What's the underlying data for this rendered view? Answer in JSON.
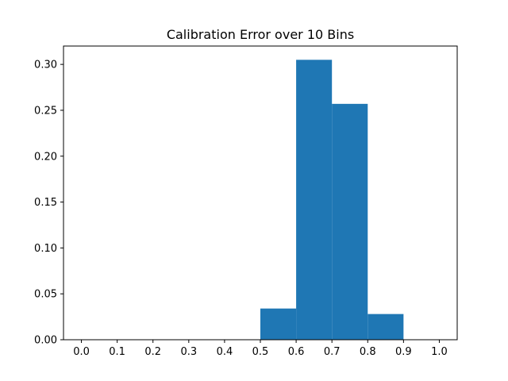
{
  "chart_data": {
    "type": "bar",
    "title": "Calibration Error over 10 Bins",
    "xlabel": "",
    "ylabel": "",
    "xlim": [
      -0.05,
      1.05
    ],
    "ylim": [
      0,
      0.32
    ],
    "bins": [
      {
        "x0": 0.0,
        "x1": 0.1,
        "value": 0
      },
      {
        "x0": 0.1,
        "x1": 0.2,
        "value": 0
      },
      {
        "x0": 0.2,
        "x1": 0.3,
        "value": 0
      },
      {
        "x0": 0.3,
        "x1": 0.4,
        "value": 0
      },
      {
        "x0": 0.4,
        "x1": 0.5,
        "value": 0
      },
      {
        "x0": 0.5,
        "x1": 0.6,
        "value": 0.034
      },
      {
        "x0": 0.6,
        "x1": 0.7,
        "value": 0.305
      },
      {
        "x0": 0.7,
        "x1": 0.8,
        "value": 0.257
      },
      {
        "x0": 0.8,
        "x1": 0.9,
        "value": 0.028
      },
      {
        "x0": 0.9,
        "x1": 1.0,
        "value": 0
      }
    ],
    "xticks": [
      0.0,
      0.1,
      0.2,
      0.3,
      0.4,
      0.5,
      0.6,
      0.7,
      0.8,
      0.9,
      1.0
    ],
    "xtick_labels": [
      "0.0",
      "0.1",
      "0.2",
      "0.3",
      "0.4",
      "0.5",
      "0.6",
      "0.7",
      "0.8",
      "0.9",
      "1.0"
    ],
    "yticks": [
      0.0,
      0.05,
      0.1,
      0.15,
      0.2,
      0.25,
      0.3
    ],
    "ytick_labels": [
      "0.00",
      "0.05",
      "0.10",
      "0.15",
      "0.20",
      "0.25",
      "0.30"
    ],
    "grid": false,
    "bar_color": "#1f77b4"
  }
}
